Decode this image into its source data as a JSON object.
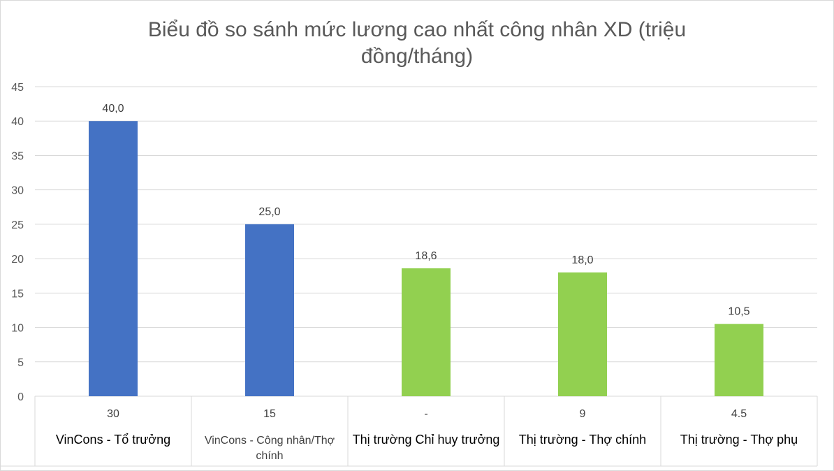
{
  "chart_data": {
    "type": "bar",
    "title": "Biểu đồ so sánh mức lương cao nhất công nhân XD (triệu",
    "title_line2": "đồng/tháng)",
    "ylim": [
      0,
      45
    ],
    "yticks": [
      0,
      5,
      10,
      15,
      20,
      25,
      30,
      35,
      40,
      45
    ],
    "grid": true,
    "categories": [
      [
        "VinCons - Tổ trưởng"
      ],
      [
        "VinCons - Công nhân/Thợ",
        "chính"
      ],
      [
        "Thị trường Chỉ huy trưởng"
      ],
      [
        "Thị trường - Thợ chính"
      ],
      [
        "Thị trường - Thợ phụ"
      ]
    ],
    "category_sublabels": [
      "30",
      "15",
      "-",
      "9",
      "4.5"
    ],
    "values": [
      40.0,
      25.0,
      18.6,
      18.0,
      10.5
    ],
    "data_labels": [
      "40,0",
      "25,0",
      "18,6",
      "18,0",
      "10,5"
    ],
    "bar_colors": [
      "#4472c4",
      "#4472c4",
      "#92d050",
      "#92d050",
      "#92d050"
    ]
  }
}
